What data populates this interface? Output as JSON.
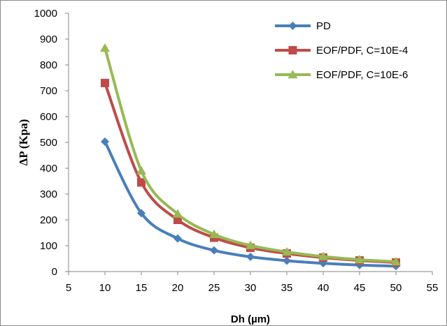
{
  "chart_data": {
    "type": "line",
    "title": "",
    "xlabel": "Dh (µm)",
    "ylabel": "ΔP (Kpa)",
    "xlim": [
      5,
      55
    ],
    "ylim": [
      0,
      1000
    ],
    "xticks": [
      "5",
      "10",
      "15",
      "20",
      "25",
      "30",
      "35",
      "40",
      "45",
      "50",
      "55"
    ],
    "yticks": [
      "0",
      "100",
      "200",
      "300",
      "400",
      "500",
      "600",
      "700",
      "800",
      "900",
      "1000"
    ],
    "grid": false,
    "smooth": true,
    "legend_position": "top-right",
    "x": [
      10,
      15,
      20,
      25,
      30,
      35,
      40,
      45,
      50
    ],
    "series": [
      {
        "name": "PD",
        "color": "#4a7ebb",
        "marker": "diamond",
        "values": [
          503,
          226,
          128,
          82,
          57,
          42,
          32,
          25,
          21
        ]
      },
      {
        "name": "EOF/PDF, C=10E-4",
        "color": "#be4b48",
        "marker": "square",
        "values": [
          730,
          345,
          200,
          131,
          92,
          70,
          54,
          43,
          35
        ]
      },
      {
        "name": "EOF/PDF, C=10E-6",
        "color": "#98b954",
        "marker": "triangle",
        "values": [
          865,
          390,
          223,
          144,
          101,
          76,
          58,
          46,
          38
        ]
      }
    ]
  }
}
